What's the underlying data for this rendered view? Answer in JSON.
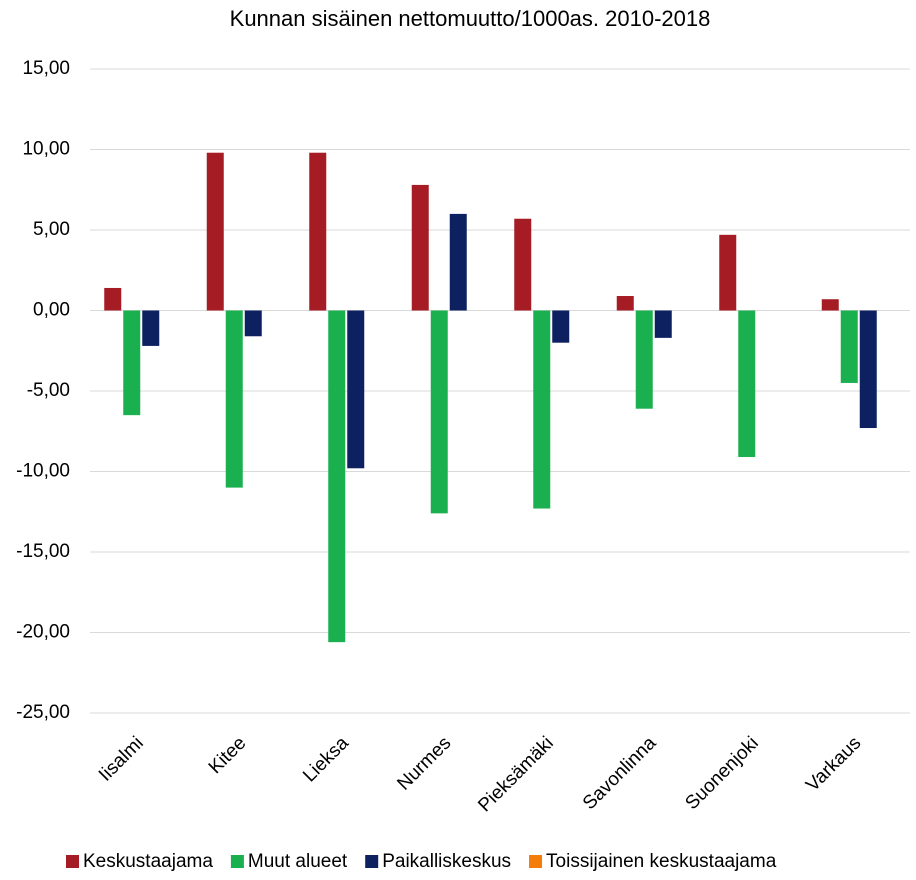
{
  "chart_data": {
    "type": "bar",
    "title": "Kunnan sisäinen nettomuutto/1000as. 2010-2018",
    "categories": [
      "Iisalmi",
      "Kitee",
      "Lieksa",
      "Nurmes",
      "Pieksämäki",
      "Savonlinna",
      "Suonenjoki",
      "Varkaus"
    ],
    "series": [
      {
        "name": "Keskustaajama",
        "color": "#a51c24",
        "values": [
          1.4,
          9.8,
          9.8,
          7.8,
          5.7,
          0.9,
          4.7,
          0.7
        ]
      },
      {
        "name": "Muut alueet",
        "color": "#1bb04f",
        "values": [
          -6.5,
          -11.0,
          -20.6,
          -12.6,
          -12.3,
          -6.1,
          -9.1,
          -4.5
        ]
      },
      {
        "name": "Paikalliskeskus",
        "color": "#0d2060",
        "values": [
          -2.2,
          -1.6,
          -9.8,
          6.0,
          -2.0,
          -1.7,
          0,
          -7.3
        ]
      },
      {
        "name": "Toissijainen keskustaajama",
        "color": "#f47c0a",
        "values": [
          0,
          0,
          0,
          0,
          0,
          0,
          0,
          0
        ]
      }
    ],
    "ylim": [
      -25,
      15
    ],
    "yticks": [
      {
        "value": -25,
        "label": "-25,00"
      },
      {
        "value": -20,
        "label": "-20,00"
      },
      {
        "value": -15,
        "label": "-15,00"
      },
      {
        "value": -10,
        "label": "-10,00"
      },
      {
        "value": -5,
        "label": "-5,00"
      },
      {
        "value": 0,
        "label": "0,00"
      },
      {
        "value": 5,
        "label": "5,00"
      },
      {
        "value": 10,
        "label": "10,00"
      },
      {
        "value": 15,
        "label": "15,00"
      }
    ],
    "grid": true,
    "legend": "bottom"
  }
}
